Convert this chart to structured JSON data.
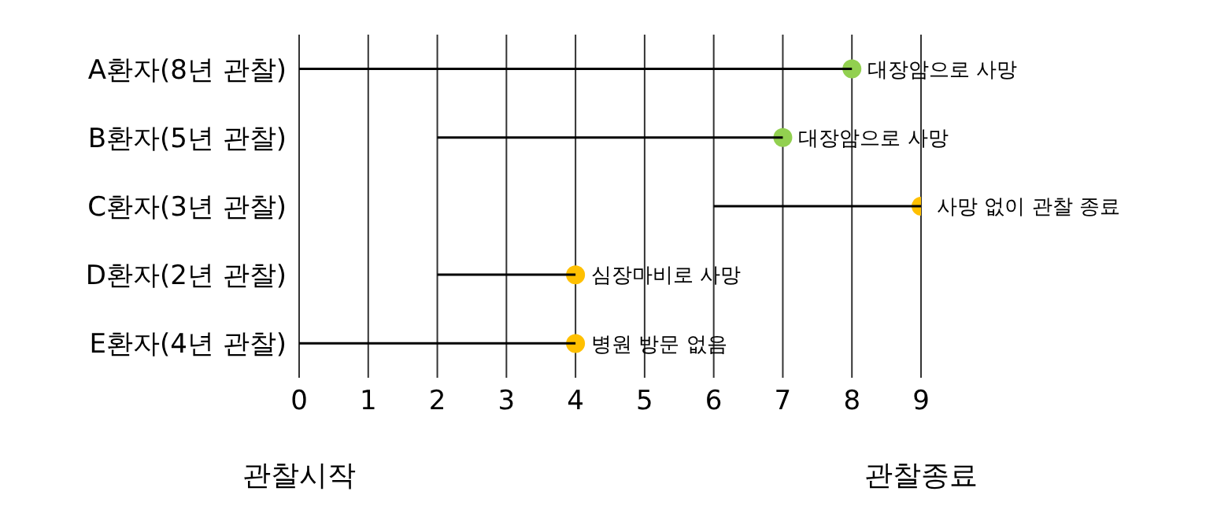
{
  "chart_data": {
    "type": "bar",
    "orientation": "horizontal",
    "categories": [
      "A환자(8년 관찰)",
      "B환자(5년 관찰)",
      "C환자(3년 관찰)",
      "D환자(2년 관찰)",
      "E환자(4년 관찰)"
    ],
    "series": [
      {
        "type": "bar",
        "color": "#000000",
        "base": [
          0,
          2,
          6,
          2,
          0
        ],
        "values": [
          8,
          5,
          3,
          2,
          4
        ]
      },
      {
        "type": "scatter",
        "colors": [
          "#92d050",
          "#92d050",
          "#ffc000",
          "#ffc000",
          "#ffc000"
        ],
        "values": [
          8,
          7,
          9,
          4,
          4
        ]
      }
    ],
    "xlim": [
      0,
      9
    ],
    "xticks": [
      0,
      1,
      2,
      3,
      4,
      5,
      6,
      7,
      8,
      9
    ],
    "grid": "x",
    "marker": "circle",
    "annotations": [
      "대장암으로 사망",
      "대장암으로 사망",
      "사망 없이 관찰 종료",
      "심장마비로 사망",
      "병원 방문 없음",
      "관찰시작",
      "관찰종료"
    ]
  }
}
